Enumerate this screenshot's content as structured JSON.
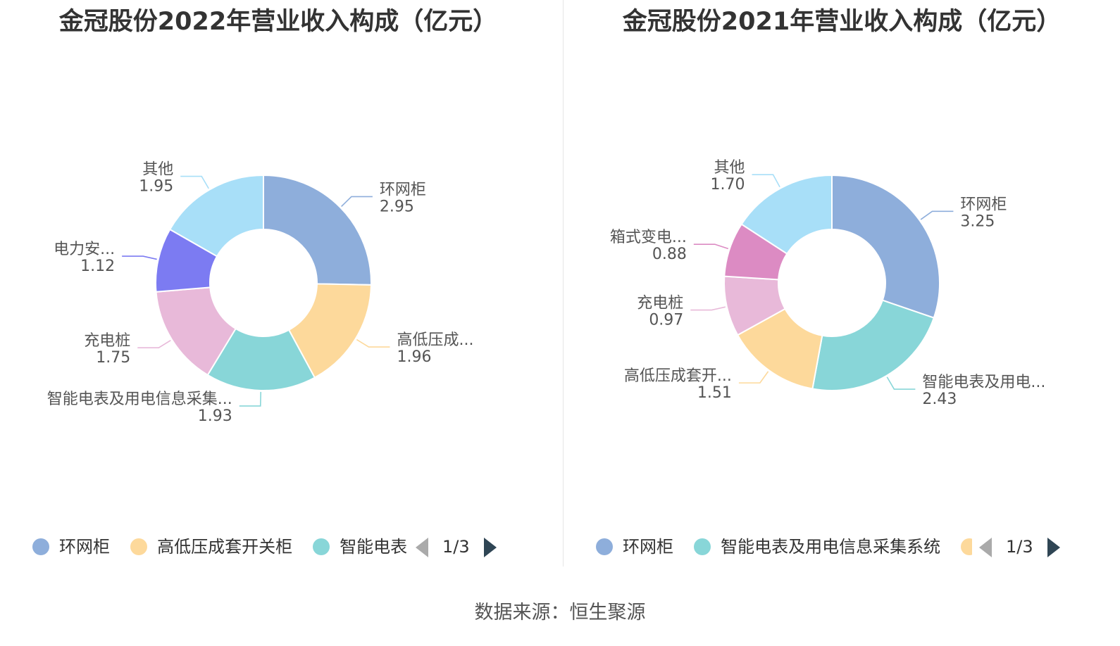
{
  "source": "数据来源：恒生聚源",
  "charts": [
    {
      "title": "金冠股份2022年营业收入构成（亿元）",
      "legend_visible": [
        "环网柜",
        "高低压成套开关柜",
        "智能电表"
      ],
      "pager": "1/3"
    },
    {
      "title": "金冠股份2021年营业收入构成（亿元）",
      "legend_visible": [
        "环网柜",
        "智能电表及用电信息采集系统",
        ""
      ],
      "pager": "1/3"
    }
  ],
  "chart_data": [
    {
      "type": "pie",
      "title": "金冠股份2022年营业收入构成（亿元）",
      "donut": true,
      "legend_placement": "bottom",
      "slices": [
        {
          "label": "环网柜",
          "display_label": "环网柜",
          "value": 2.95,
          "value_label": "2.95",
          "color": "#8eaedb"
        },
        {
          "label": "高低压成套开关柜",
          "display_label": "高低压成...",
          "value": 1.96,
          "value_label": "1.96",
          "color": "#fdd99b"
        },
        {
          "label": "智能电表及用电信息采集系统",
          "display_label": "智能电表及用电信息采集...",
          "value": 1.93,
          "value_label": "1.93",
          "color": "#88d6d8"
        },
        {
          "label": "充电桩",
          "display_label": "充电桩",
          "value": 1.75,
          "value_label": "1.75",
          "color": "#e8b9d9"
        },
        {
          "label": "电力安...",
          "display_label": "电力安...",
          "value": 1.12,
          "value_label": "1.12",
          "color": "#7c7bf2"
        },
        {
          "label": "其他",
          "display_label": "其他",
          "value": 1.95,
          "value_label": "1.95",
          "color": "#a8dff8"
        }
      ]
    },
    {
      "type": "pie",
      "title": "金冠股份2021年营业收入构成（亿元）",
      "donut": true,
      "legend_placement": "bottom",
      "slices": [
        {
          "label": "环网柜",
          "display_label": "环网柜",
          "value": 3.25,
          "value_label": "3.25",
          "color": "#8eaedb"
        },
        {
          "label": "智能电表及用电信息采集系统",
          "display_label": "智能电表及用电...",
          "value": 2.43,
          "value_label": "2.43",
          "color": "#88d6d8"
        },
        {
          "label": "高低压成套开关柜",
          "display_label": "高低压成套开...",
          "value": 1.51,
          "value_label": "1.51",
          "color": "#fdd99b"
        },
        {
          "label": "充电桩",
          "display_label": "充电桩",
          "value": 0.97,
          "value_label": "0.97",
          "color": "#e8b9d9"
        },
        {
          "label": "箱式变电...",
          "display_label": "箱式变电...",
          "value": 0.88,
          "value_label": "0.88",
          "color": "#dc8bc3"
        },
        {
          "label": "其他",
          "display_label": "其他",
          "value": 1.7,
          "value_label": "1.70",
          "color": "#a8dff8"
        }
      ]
    }
  ]
}
